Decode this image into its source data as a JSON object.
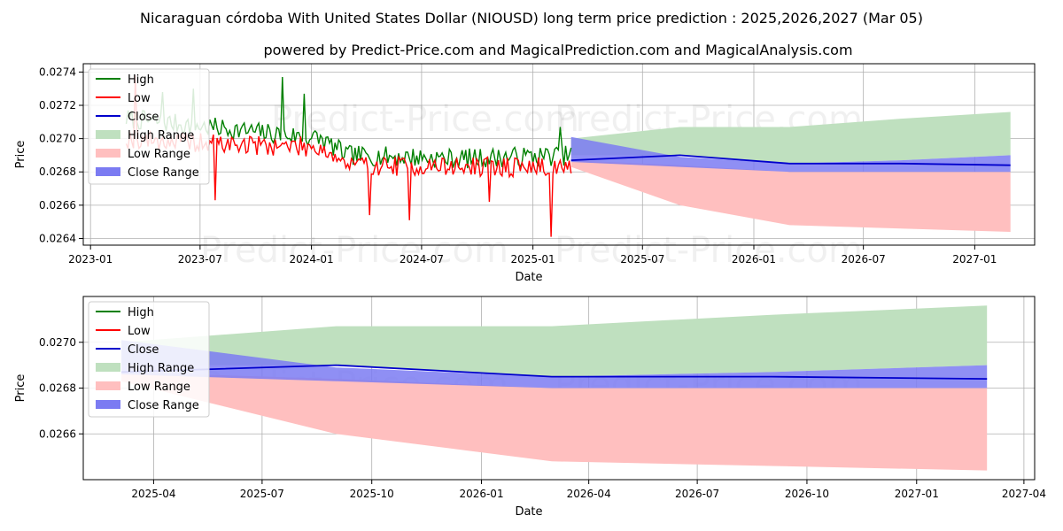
{
  "title": "Nicaraguan córdoba With United States Dollar (NIOUSD) long term price prediction : 2025,2026,2027 (Mar 05)",
  "subtitle": "powered by Predict-Price.com and MagicalPrediction.com and MagicalAnalysis.com",
  "watermark": "Predict-Price.com",
  "colors": {
    "high": "#008000",
    "low": "#ff0000",
    "close": "#0000cc",
    "high_range": "#bfe0bf",
    "low_range": "#ffbfbf",
    "close_range": "#7b7bf2",
    "grid": "#b0b0b0"
  },
  "chart_data": [
    {
      "type": "line",
      "name": "history-and-forecast",
      "xlabel": "Date",
      "ylabel": "Price",
      "xlim": [
        "2022-12-20",
        "2027-04-10"
      ],
      "ylim": [
        0.02636,
        0.02745
      ],
      "x_ticks": [
        "2023-01",
        "2023-07",
        "2024-01",
        "2024-07",
        "2025-01",
        "2025-07",
        "2026-01",
        "2026-07",
        "2027-01"
      ],
      "y_ticks": [
        0.0264,
        0.0266,
        0.0268,
        0.027,
        0.0272,
        0.0274
      ],
      "grid": true,
      "legend": {
        "position": "top-left",
        "entries": [
          "High",
          "Low",
          "Close",
          "High Range",
          "Low Range",
          "Close Range"
        ]
      },
      "history": {
        "start": "2023-03-01",
        "end": "2025-03-05",
        "note": "daily noisy High/Low series, approximate",
        "high_profile": [
          [
            "2023-03-01",
            0.02712
          ],
          [
            "2023-07-15",
            0.02707
          ],
          [
            "2024-01-15",
            0.027
          ],
          [
            "2024-03-01",
            0.0269
          ],
          [
            "2024-09-01",
            0.02688
          ],
          [
            "2025-03-05",
            0.0269
          ]
        ],
        "low_profile": [
          [
            "2023-03-01",
            0.027
          ],
          [
            "2023-07-15",
            0.02697
          ],
          [
            "2024-01-15",
            0.02695
          ],
          [
            "2024-03-01",
            0.02684
          ],
          [
            "2024-09-01",
            0.02683
          ],
          [
            "2025-03-05",
            0.02683
          ]
        ],
        "spikes": [
          {
            "date": "2023-03-15",
            "series": "low",
            "value": 0.02738
          },
          {
            "date": "2023-05-01",
            "series": "high",
            "value": 0.02728
          },
          {
            "date": "2023-06-20",
            "series": "high",
            "value": 0.0273
          },
          {
            "date": "2023-07-25",
            "series": "low",
            "value": 0.02663
          },
          {
            "date": "2023-11-15",
            "series": "high",
            "value": 0.02737
          },
          {
            "date": "2023-12-20",
            "series": "high",
            "value": 0.02727
          },
          {
            "date": "2024-04-05",
            "series": "low",
            "value": 0.02654
          },
          {
            "date": "2024-06-10",
            "series": "low",
            "value": 0.02651
          },
          {
            "date": "2024-10-20",
            "series": "low",
            "value": 0.02662
          },
          {
            "date": "2025-02-01",
            "series": "low",
            "value": 0.02641
          },
          {
            "date": "2025-02-15",
            "series": "high",
            "value": 0.02707
          }
        ]
      },
      "forecast": {
        "dates": [
          "2025-03-05",
          "2025-09-01",
          "2026-03-01",
          "2026-09-01",
          "2027-03-01"
        ],
        "close": [
          0.02687,
          0.0269,
          0.02685,
          0.02685,
          0.02684
        ],
        "high_range": {
          "lower": [
            0.0269,
            0.0269,
            0.02685,
            0.02687,
            0.0269
          ],
          "upper": [
            0.027,
            0.02707,
            0.02707,
            0.02712,
            0.02716
          ]
        },
        "low_range": {
          "lower": [
            0.02683,
            0.0266,
            0.02648,
            0.02646,
            0.02644
          ],
          "upper": [
            0.02687,
            0.02684,
            0.0268,
            0.0268,
            0.0268
          ]
        },
        "close_range": {
          "lower": [
            0.02686,
            0.02683,
            0.0268,
            0.0268,
            0.0268
          ],
          "upper": [
            0.02701,
            0.02689,
            0.02685,
            0.02687,
            0.0269
          ]
        }
      }
    },
    {
      "type": "line",
      "name": "forecast-zoom",
      "xlabel": "Date",
      "ylabel": "Price",
      "xlim": [
        "2025-02-01",
        "2027-04-10"
      ],
      "ylim": [
        0.0264,
        0.0272
      ],
      "x_ticks": [
        "2025-04",
        "2025-07",
        "2025-10",
        "2026-01",
        "2026-04",
        "2026-07",
        "2026-10",
        "2027-01",
        "2027-04"
      ],
      "y_ticks": [
        0.0266,
        0.0268,
        0.027
      ],
      "grid": true,
      "legend": {
        "position": "top-left",
        "entries": [
          "High",
          "Low",
          "Close",
          "High Range",
          "Low Range",
          "Close Range"
        ]
      },
      "forecast": {
        "dates": [
          "2025-03-05",
          "2025-09-01",
          "2026-03-01",
          "2026-09-01",
          "2027-03-01"
        ],
        "close": [
          0.02687,
          0.0269,
          0.02685,
          0.02685,
          0.02684
        ],
        "high_range": {
          "lower": [
            0.0269,
            0.0269,
            0.02685,
            0.02687,
            0.0269
          ],
          "upper": [
            0.027,
            0.02707,
            0.02707,
            0.02712,
            0.02716
          ]
        },
        "low_range": {
          "lower": [
            0.02683,
            0.0266,
            0.02648,
            0.02646,
            0.02644
          ],
          "upper": [
            0.02687,
            0.02684,
            0.0268,
            0.0268,
            0.0268
          ]
        },
        "close_range": {
          "lower": [
            0.02686,
            0.02683,
            0.0268,
            0.0268,
            0.0268
          ],
          "upper": [
            0.02701,
            0.02689,
            0.02685,
            0.02687,
            0.0269
          ]
        }
      }
    }
  ]
}
